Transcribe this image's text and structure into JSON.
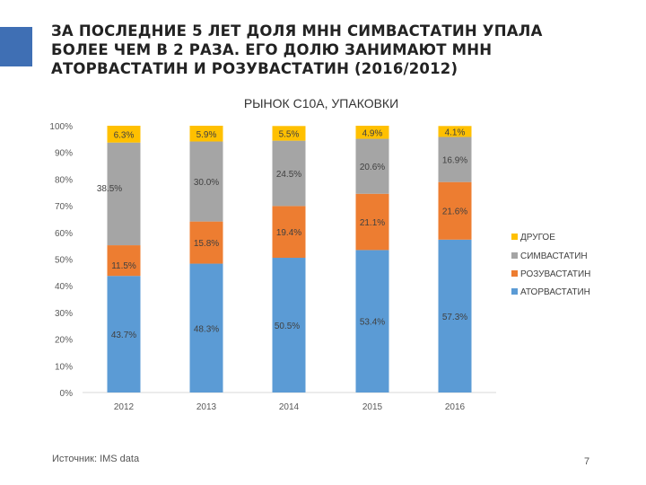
{
  "slide": {
    "title_lines": [
      "ЗА ПОСЛЕДНИЕ 5 ЛЕТ ДОЛЯ МНН СИМВАСТАТИН УПАЛА",
      "БОЛЕЕ ЧЕМ В 2 РАЗА. ЕГО ДОЛЮ ЗАНИМАЮТ МНН",
      "АТОРВАСТАТИН И РОЗУВАСТАТИН  (2016/2012)"
    ],
    "source": "Источник: IMS data",
    "page_number": "7",
    "accent_color": "#3f6fb4"
  },
  "chart_data": {
    "type": "bar",
    "stacked": true,
    "title": "РЫНОК С10А, УПАКОВКИ",
    "categories": [
      "2012",
      "2013",
      "2014",
      "2015",
      "2016"
    ],
    "series": [
      {
        "name": "АТОРВАСТАТИН",
        "color": "#5b9bd5",
        "values": [
          43.7,
          48.3,
          50.5,
          53.4,
          57.3
        ],
        "labels": [
          "43.7%",
          "48.3%",
          "50.5%",
          "53.4%",
          "57.3%"
        ]
      },
      {
        "name": "РОЗУВАСТАТИН",
        "color": "#ed7d31",
        "values": [
          11.5,
          15.8,
          19.4,
          21.1,
          21.6
        ],
        "labels": [
          "11.5%",
          "15.8%",
          "19.4%",
          "21.1%",
          "21.6%"
        ]
      },
      {
        "name": "СИМВАСТАТИН",
        "color": "#a5a5a5",
        "values": [
          38.5,
          30.0,
          24.5,
          20.6,
          16.9
        ],
        "labels": [
          "38.5%",
          "30.0%",
          "24.5%",
          "20.6%",
          "16.9%"
        ]
      },
      {
        "name": "ДРУГОЕ",
        "color": "#ffc000",
        "values": [
          6.3,
          5.9,
          5.5,
          4.9,
          4.1
        ],
        "labels": [
          "6.3%",
          "5.9%",
          "5.5%",
          "4.9%",
          "4.1%"
        ]
      }
    ],
    "y_ticks": [
      "0%",
      "10%",
      "20%",
      "30%",
      "40%",
      "50%",
      "60%",
      "70%",
      "80%",
      "90%",
      "100%"
    ],
    "ylim": [
      0,
      100
    ],
    "legend_order": [
      "ДРУГОЕ",
      "СИМВАСТАТИН",
      "РОЗУВАСТАТИН",
      "АТОРВАСТАТИН"
    ],
    "legend_position": "right",
    "grid": false
  }
}
